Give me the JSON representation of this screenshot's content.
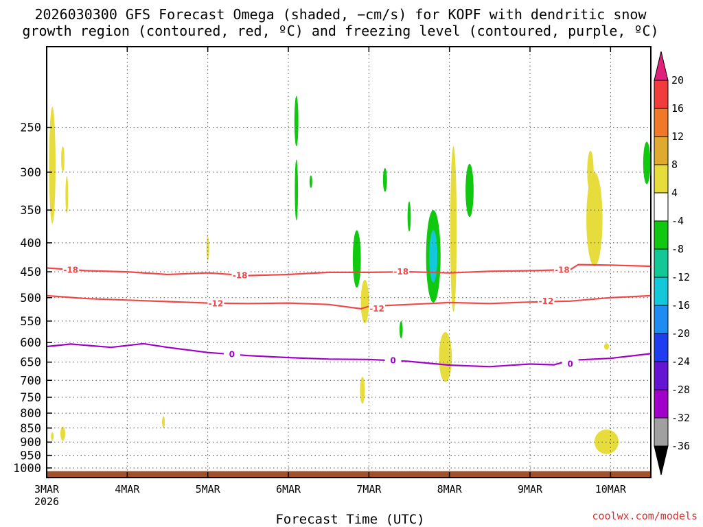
{
  "title_lines": [
    "2026030300 GFS Forecast Omega (shaded, −cm/s) for KOPF with dendritic snow",
    "growth region (contoured, red, ºC) and freezing level (contoured, purple, ºC)"
  ],
  "credit": "coolwx.com/models",
  "colors": {
    "isotherm_dgz": "#f04848",
    "freezing_level": "#a000c8",
    "ground": "#a0522d",
    "grid": "#555555"
  },
  "chart_data": {
    "type": "heatmap",
    "xlabel": "Forecast Time (UTC)",
    "ylabel": "",
    "x_ticks": [
      "3MAR",
      "4MAR",
      "5MAR",
      "6MAR",
      "7MAR",
      "8MAR",
      "9MAR",
      "10MAR"
    ],
    "x_tick_year": "2026",
    "x_range_days": [
      0,
      7.5
    ],
    "y_ticks": [
      250,
      300,
      350,
      400,
      450,
      500,
      550,
      600,
      650,
      700,
      750,
      800,
      850,
      900,
      950,
      1000
    ],
    "y_range_hpa": [
      1040,
      180
    ],
    "y_scale": "log-pressure",
    "grid": true,
    "colorbar": {
      "ticks": [
        "20",
        "16",
        "12",
        "8",
        "4",
        "-4",
        "-8",
        "-12",
        "-16",
        "-20",
        "-24",
        "-28",
        "-32",
        "-36"
      ],
      "colors": [
        "#e0207a",
        "#f03c3c",
        "#f07828",
        "#e0aa30",
        "#e6dc3c",
        "#ffffff",
        "#10c810",
        "#14c896",
        "#14c8dc",
        "#1e8cf0",
        "#1e3cf0",
        "#6414d2",
        "#a000c8",
        "#a0a0a0"
      ]
    },
    "contours": [
      {
        "level": "-18",
        "color": "#f04848",
        "points": [
          [
            0,
            443
          ],
          [
            0.5,
            448
          ],
          [
            1,
            450
          ],
          [
            1.5,
            455
          ],
          [
            2,
            452
          ],
          [
            2.5,
            457
          ],
          [
            3,
            455
          ],
          [
            3.5,
            451
          ],
          [
            4,
            451
          ],
          [
            4.5,
            450
          ],
          [
            5,
            452
          ],
          [
            5.5,
            449
          ],
          [
            6,
            448
          ],
          [
            6.5,
            446
          ],
          [
            6.6,
            437
          ],
          [
            7,
            438
          ],
          [
            7.5,
            440
          ]
        ],
        "labels": [
          [
            0.3,
            447
          ],
          [
            2.4,
            457
          ],
          [
            4.4,
            450
          ],
          [
            6.4,
            447
          ]
        ]
      },
      {
        "level": "-12",
        "color": "#f04848",
        "points": [
          [
            0,
            496
          ],
          [
            0.5,
            502
          ],
          [
            1,
            505
          ],
          [
            1.5,
            508
          ],
          [
            2,
            511
          ],
          [
            2.5,
            512
          ],
          [
            3,
            511
          ],
          [
            3.5,
            514
          ],
          [
            3.9,
            523
          ],
          [
            4,
            518
          ],
          [
            4.5,
            514
          ],
          [
            5,
            510
          ],
          [
            5.5,
            512
          ],
          [
            6,
            509
          ],
          [
            6.5,
            507
          ],
          [
            7,
            500
          ],
          [
            7.5,
            496
          ]
        ],
        "labels": [
          [
            2.1,
            512
          ],
          [
            4.1,
            523
          ],
          [
            6.2,
            507
          ]
        ]
      },
      {
        "level": "0",
        "color": "#a000c8",
        "points": [
          [
            0,
            610
          ],
          [
            0.3,
            604
          ],
          [
            0.8,
            612
          ],
          [
            1.2,
            603
          ],
          [
            1.5,
            612
          ],
          [
            2,
            625
          ],
          [
            2.5,
            633
          ],
          [
            3,
            638
          ],
          [
            3.5,
            642
          ],
          [
            4,
            643
          ],
          [
            4.5,
            648
          ],
          [
            5,
            658
          ],
          [
            5.5,
            662
          ],
          [
            6,
            655
          ],
          [
            6.3,
            657
          ],
          [
            6.5,
            645
          ],
          [
            7,
            640
          ],
          [
            7.5,
            628
          ]
        ],
        "labels": [
          [
            2.3,
            630
          ],
          [
            4.3,
            646
          ],
          [
            6.5,
            655
          ]
        ]
      }
    ],
    "omega_shaded_regions": [
      {
        "value": 4,
        "color": "#e6dc3c",
        "cx": 0.07,
        "cy": 300,
        "rx": 0.04,
        "ry": 70
      },
      {
        "value": 4,
        "color": "#e6dc3c",
        "cx": 0.2,
        "cy": 285,
        "rx": 0.02,
        "ry": 15
      },
      {
        "value": 4,
        "color": "#e6dc3c",
        "cx": 0.25,
        "cy": 330,
        "rx": 0.015,
        "ry": 25
      },
      {
        "value": 4,
        "color": "#e6dc3c",
        "cx": 2.0,
        "cy": 410,
        "rx": 0.015,
        "ry": 20
      },
      {
        "value": 4,
        "color": "#e6dc3c",
        "cx": 1.45,
        "cy": 830,
        "rx": 0.015,
        "ry": 20
      },
      {
        "value": 4,
        "color": "#e6dc3c",
        "cx": 0.2,
        "cy": 870,
        "rx": 0.03,
        "ry": 25
      },
      {
        "value": 4,
        "color": "#e6dc3c",
        "cx": 0.07,
        "cy": 880,
        "rx": 0.015,
        "ry": 15
      },
      {
        "value": 4,
        "color": "#e6dc3c",
        "cx": 3.95,
        "cy": 510,
        "rx": 0.05,
        "ry": 45
      },
      {
        "value": 4,
        "color": "#e6dc3c",
        "cx": 3.92,
        "cy": 730,
        "rx": 0.03,
        "ry": 40
      },
      {
        "value": 4,
        "color": "#e6dc3c",
        "cx": 5.05,
        "cy": 400,
        "rx": 0.04,
        "ry": 130
      },
      {
        "value": 4,
        "color": "#e6dc3c",
        "cx": 4.95,
        "cy": 640,
        "rx": 0.08,
        "ry": 65
      },
      {
        "value": 4,
        "color": "#e6dc3c",
        "cx": 6.8,
        "cy": 370,
        "rx": 0.1,
        "ry": 70
      },
      {
        "value": 4,
        "color": "#e6dc3c",
        "cx": 6.75,
        "cy": 300,
        "rx": 0.04,
        "ry": 25
      },
      {
        "value": 4,
        "color": "#e6dc3c",
        "cx": 6.95,
        "cy": 900,
        "rx": 0.15,
        "ry": 45
      },
      {
        "value": 4,
        "color": "#e6dc3c",
        "cx": 6.95,
        "cy": 610,
        "rx": 0.03,
        "ry": 8
      },
      {
        "value": -8,
        "color": "#10c810",
        "cx": 3.1,
        "cy": 245,
        "rx": 0.025,
        "ry": 25
      },
      {
        "value": -8,
        "color": "#10c810",
        "cx": 3.1,
        "cy": 325,
        "rx": 0.02,
        "ry": 40
      },
      {
        "value": -8,
        "color": "#10c810",
        "cx": 3.28,
        "cy": 312,
        "rx": 0.01,
        "ry": 8
      },
      {
        "value": -8,
        "color": "#10c810",
        "cx": 3.85,
        "cy": 430,
        "rx": 0.05,
        "ry": 50
      },
      {
        "value": -8,
        "color": "#10c810",
        "cx": 4.2,
        "cy": 310,
        "rx": 0.025,
        "ry": 15
      },
      {
        "value": -8,
        "color": "#10c810",
        "cx": 4.5,
        "cy": 360,
        "rx": 0.02,
        "ry": 22
      },
      {
        "value": -8,
        "color": "#10c810",
        "cx": 4.4,
        "cy": 570,
        "rx": 0.02,
        "ry": 20
      },
      {
        "value": -8,
        "color": "#10c810",
        "cx": 5.25,
        "cy": 325,
        "rx": 0.05,
        "ry": 35
      },
      {
        "value": -8,
        "color": "#10c810",
        "cx": 7.45,
        "cy": 290,
        "rx": 0.045,
        "ry": 25
      },
      {
        "value": -8,
        "color": "#10c810",
        "cx": 4.8,
        "cy": 430,
        "rx": 0.09,
        "ry": 80
      },
      {
        "value": -12,
        "color": "#14c8dc",
        "cx": 4.8,
        "cy": 425,
        "rx": 0.05,
        "ry": 45
      }
    ]
  }
}
